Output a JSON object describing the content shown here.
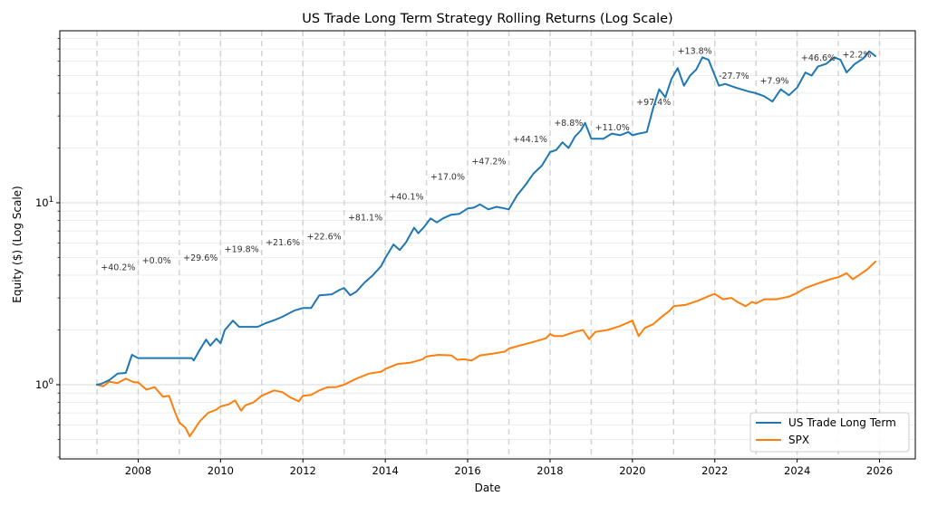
{
  "chart_data": {
    "type": "line",
    "title": "US Trade Long Term Strategy Rolling Returns (Log Scale)",
    "xlabel": "Date",
    "ylabel": "Equity ($) (Log Scale)",
    "yscale": "log",
    "xlim": [
      2006.2,
      2026.8
    ],
    "ylim": [
      0.39,
      85
    ],
    "grid": true,
    "x_ticks": [
      2008,
      2010,
      2012,
      2014,
      2016,
      2018,
      2020,
      2022,
      2024,
      2026
    ],
    "x_tick_labels": [
      "2008",
      "2010",
      "2012",
      "2014",
      "2016",
      "2018",
      "2020",
      "2022",
      "2024",
      "2026"
    ],
    "y_ticks": [
      1,
      10
    ],
    "y_tick_labels": [
      {
        "base": "10",
        "exp": "0"
      },
      {
        "base": "10",
        "exp": "1"
      }
    ],
    "year_boundaries": [
      2007,
      2008,
      2009,
      2010,
      2011,
      2012,
      2013,
      2014,
      2015,
      2016,
      2017,
      2018,
      2019,
      2020,
      2021,
      2022,
      2023,
      2024,
      2025,
      2026
    ],
    "legend": {
      "placement": "lower-right"
    },
    "series": [
      {
        "name": "US Trade Long Term",
        "color": "#1f77b4",
        "x": [
          2007.0,
          2007.1,
          2007.3,
          2007.5,
          2007.7,
          2007.85,
          2008.0,
          2008.5,
          2009.0,
          2009.3,
          2009.35,
          2009.5,
          2009.65,
          2009.75,
          2009.9,
          2010.0,
          2010.1,
          2010.3,
          2010.45,
          2010.9,
          2011.1,
          2011.3,
          2011.5,
          2011.8,
          2012.0,
          2012.2,
          2012.4,
          2012.7,
          2012.9,
          2013.0,
          2013.15,
          2013.3,
          2013.5,
          2013.7,
          2013.9,
          2014.0,
          2014.2,
          2014.35,
          2014.5,
          2014.7,
          2014.8,
          2014.95,
          2015.1,
          2015.25,
          2015.4,
          2015.6,
          2015.8,
          2016.0,
          2016.15,
          2016.3,
          2016.5,
          2016.7,
          2016.9,
          2017.0,
          2017.2,
          2017.4,
          2017.6,
          2017.8,
          2018.0,
          2018.15,
          2018.3,
          2018.45,
          2018.6,
          2018.75,
          2018.85,
          2019.0,
          2019.3,
          2019.5,
          2019.7,
          2019.9,
          2020.0,
          2020.15,
          2020.35,
          2020.5,
          2020.65,
          2020.8,
          2020.95,
          2021.1,
          2021.25,
          2021.4,
          2021.55,
          2021.7,
          2021.85,
          2022.0,
          2022.1,
          2022.25,
          2022.5,
          2022.8,
          2023.0,
          2023.2,
          2023.4,
          2023.6,
          2023.8,
          2024.0,
          2024.2,
          2024.35,
          2024.5,
          2024.7,
          2024.9,
          2025.05,
          2025.2,
          2025.4,
          2025.6,
          2025.75,
          2025.9
        ],
        "values": [
          1.0,
          1.01,
          1.06,
          1.15,
          1.16,
          1.46,
          1.4,
          1.4,
          1.4,
          1.4,
          1.36,
          1.56,
          1.77,
          1.64,
          1.79,
          1.69,
          1.99,
          2.25,
          2.08,
          2.08,
          2.18,
          2.26,
          2.36,
          2.56,
          2.64,
          2.64,
          3.1,
          3.14,
          3.33,
          3.4,
          3.1,
          3.25,
          3.65,
          4.0,
          4.49,
          4.97,
          5.9,
          5.5,
          6.05,
          7.3,
          6.8,
          7.4,
          8.2,
          7.8,
          8.2,
          8.6,
          8.7,
          9.3,
          9.4,
          9.8,
          9.2,
          9.5,
          9.3,
          9.2,
          11.0,
          12.5,
          14.5,
          16.0,
          19.0,
          19.5,
          21.5,
          20.0,
          23.0,
          25.0,
          27.5,
          22.5,
          22.5,
          24.0,
          23.5,
          24.5,
          23.5,
          24.0,
          24.5,
          33.0,
          42.0,
          38.0,
          48.0,
          55.0,
          44.0,
          50.0,
          54.0,
          63.0,
          61.0,
          50.0,
          44.0,
          45.0,
          43.0,
          41.0,
          40.0,
          38.5,
          36.0,
          42.0,
          39.0,
          43.0,
          52.0,
          50.0,
          56.0,
          58.0,
          63.0,
          61.0,
          52.0,
          58.0,
          62.0,
          68.0,
          64.0
        ]
      },
      {
        "name": "SPX",
        "color": "#ff7f0e",
        "x": [
          2007.0,
          2007.15,
          2007.3,
          2007.5,
          2007.7,
          2007.9,
          2008.0,
          2008.2,
          2008.4,
          2008.6,
          2008.75,
          2008.9,
          2009.0,
          2009.15,
          2009.25,
          2009.5,
          2009.7,
          2009.9,
          2010.0,
          2010.2,
          2010.35,
          2010.5,
          2010.6,
          2010.8,
          2011.0,
          2011.3,
          2011.5,
          2011.7,
          2011.9,
          2012.0,
          2012.2,
          2012.4,
          2012.6,
          2012.8,
          2013.0,
          2013.3,
          2013.6,
          2013.9,
          2014.0,
          2014.3,
          2014.6,
          2014.9,
          2015.0,
          2015.3,
          2015.6,
          2015.75,
          2015.9,
          2016.1,
          2016.3,
          2016.6,
          2016.9,
          2017.0,
          2017.3,
          2017.6,
          2017.9,
          2018.0,
          2018.1,
          2018.3,
          2018.6,
          2018.8,
          2018.95,
          2019.1,
          2019.4,
          2019.7,
          2019.9,
          2020.0,
          2020.15,
          2020.3,
          2020.5,
          2020.7,
          2020.9,
          2021.0,
          2021.3,
          2021.6,
          2021.9,
          2022.0,
          2022.2,
          2022.4,
          2022.55,
          2022.75,
          2022.9,
          2023.0,
          2023.2,
          2023.5,
          2023.8,
          2024.0,
          2024.2,
          2024.5,
          2024.8,
          2025.0,
          2025.2,
          2025.35,
          2025.5,
          2025.7,
          2025.9
        ],
        "values": [
          1.0,
          0.98,
          1.04,
          1.02,
          1.08,
          1.03,
          1.03,
          0.94,
          0.97,
          0.86,
          0.87,
          0.7,
          0.62,
          0.58,
          0.52,
          0.63,
          0.7,
          0.73,
          0.76,
          0.78,
          0.82,
          0.72,
          0.77,
          0.8,
          0.87,
          0.93,
          0.91,
          0.85,
          0.81,
          0.87,
          0.88,
          0.93,
          0.97,
          0.97,
          1.0,
          1.08,
          1.15,
          1.18,
          1.22,
          1.3,
          1.32,
          1.38,
          1.43,
          1.46,
          1.45,
          1.37,
          1.38,
          1.36,
          1.45,
          1.48,
          1.52,
          1.58,
          1.65,
          1.72,
          1.8,
          1.9,
          1.85,
          1.85,
          1.95,
          2.0,
          1.78,
          1.95,
          2.0,
          2.1,
          2.2,
          2.25,
          1.85,
          2.05,
          2.15,
          2.35,
          2.55,
          2.7,
          2.75,
          2.9,
          3.1,
          3.15,
          2.95,
          3.0,
          2.85,
          2.7,
          2.85,
          2.8,
          2.95,
          2.95,
          3.05,
          3.2,
          3.4,
          3.6,
          3.8,
          3.9,
          4.1,
          3.8,
          4.0,
          4.3,
          4.75
        ]
      }
    ],
    "annotations": [
      {
        "x": 2007.05,
        "y": 4.25,
        "text": "+40.2%"
      },
      {
        "x": 2008.05,
        "y": 4.65,
        "text": "+0.0%"
      },
      {
        "x": 2009.05,
        "y": 4.8,
        "text": "+29.6%"
      },
      {
        "x": 2010.05,
        "y": 5.35,
        "text": "+19.8%"
      },
      {
        "x": 2011.05,
        "y": 5.85,
        "text": "+21.6%"
      },
      {
        "x": 2012.05,
        "y": 6.3,
        "text": "+22.6%"
      },
      {
        "x": 2013.05,
        "y": 8.0,
        "text": "+81.1%"
      },
      {
        "x": 2014.05,
        "y": 10.4,
        "text": "+40.1%"
      },
      {
        "x": 2015.05,
        "y": 13.4,
        "text": "+17.0%"
      },
      {
        "x": 2016.05,
        "y": 16.3,
        "text": "+47.2%"
      },
      {
        "x": 2017.05,
        "y": 21.5,
        "text": "+44.1%"
      },
      {
        "x": 2018.05,
        "y": 26.5,
        "text": "+8.8%"
      },
      {
        "x": 2019.05,
        "y": 25.0,
        "text": "+11.0%"
      },
      {
        "x": 2020.05,
        "y": 34.5,
        "text": "+97.4%"
      },
      {
        "x": 2021.05,
        "y": 66.0,
        "text": "+13.8%"
      },
      {
        "x": 2022.05,
        "y": 48.0,
        "text": "-27.7%"
      },
      {
        "x": 2023.05,
        "y": 45.0,
        "text": "+7.9%"
      },
      {
        "x": 2024.05,
        "y": 60.5,
        "text": "+46.6%"
      },
      {
        "x": 2025.05,
        "y": 63.0,
        "text": "+2.2%"
      }
    ]
  }
}
